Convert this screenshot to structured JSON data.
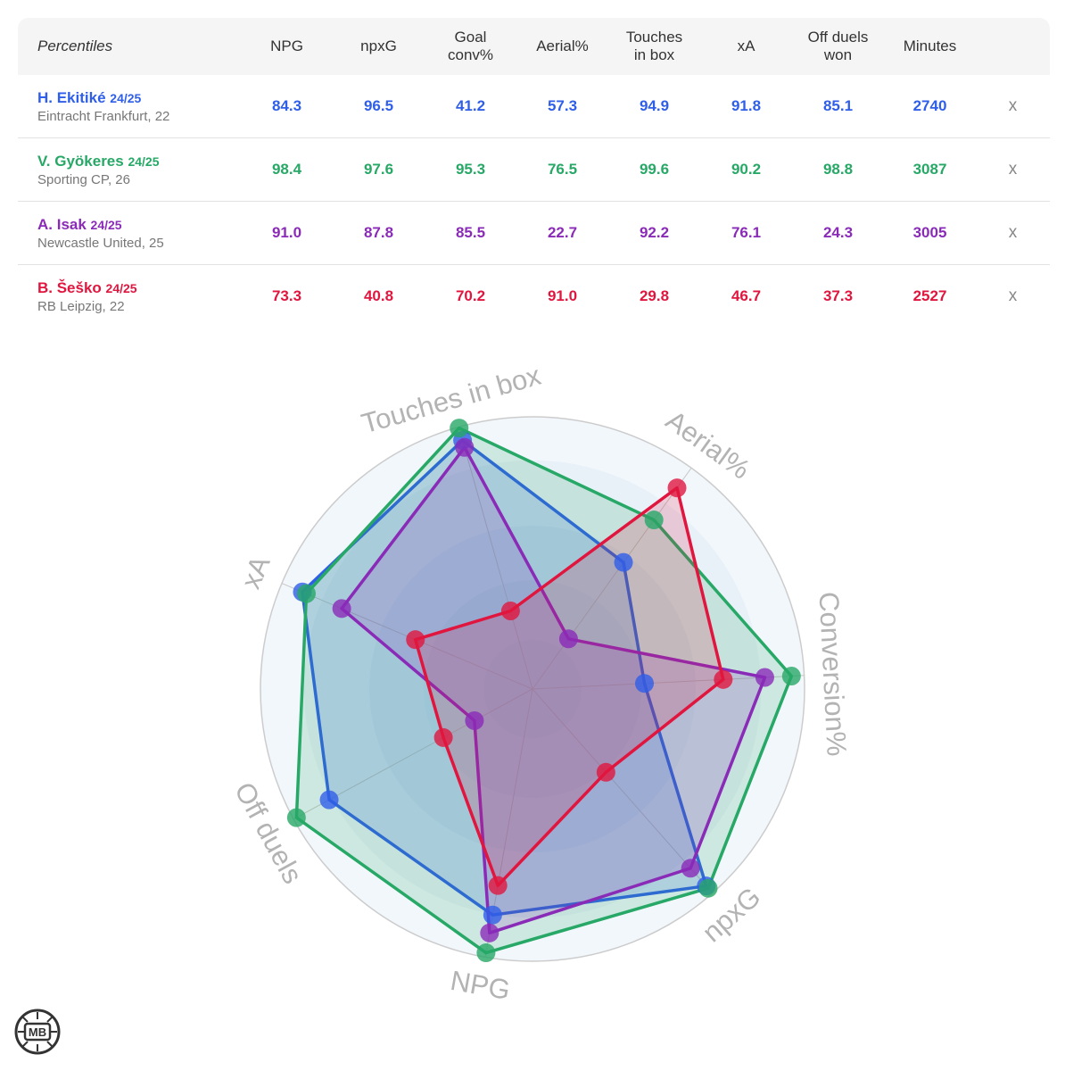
{
  "table": {
    "header_label": "Percentiles",
    "columns": [
      [
        "NPG"
      ],
      [
        "npxG"
      ],
      [
        "Goal",
        "conv%"
      ],
      [
        "Aerial%"
      ],
      [
        "Touches",
        "in box"
      ],
      [
        "xA"
      ],
      [
        "Off duels",
        "won"
      ],
      [
        "Minutes"
      ]
    ],
    "remove_label": "x",
    "players": [
      {
        "name": "H. Ekitiké",
        "season": "24/25",
        "club": "Eintracht Frankfurt, 22",
        "color": "#2f5ee8",
        "values": [
          "84.3",
          "96.5",
          "41.2",
          "57.3",
          "94.9",
          "91.8",
          "85.1",
          "2740"
        ]
      },
      {
        "name": "V. Gyökeres",
        "season": "24/25",
        "club": "Sporting CP, 26",
        "color": "#27a866",
        "values": [
          "98.4",
          "97.6",
          "95.3",
          "76.5",
          "99.6",
          "90.2",
          "98.8",
          "3087"
        ]
      },
      {
        "name": "A. Isak",
        "season": "24/25",
        "club": "Newcastle United, 25",
        "color": "#8a2bb8",
        "values": [
          "91.0",
          "87.8",
          "85.5",
          "22.7",
          "92.2",
          "76.1",
          "24.3",
          "3005"
        ]
      },
      {
        "name": "B. Šeško",
        "season": "24/25",
        "club": "RB Leipzig, 22",
        "color": "#e0163f",
        "values": [
          "73.3",
          "40.8",
          "70.2",
          "91.0",
          "29.8",
          "46.7",
          "37.3",
          "2527"
        ]
      }
    ]
  },
  "chart_data": {
    "type": "radar",
    "axes": [
      "NPG",
      "npxG",
      "Conversion%",
      "Aerial%",
      "Touches in box",
      "xA",
      "Off duels"
    ],
    "range": [
      0,
      100
    ],
    "series": [
      {
        "name": "H. Ekitiké",
        "color": "#2f5ee8",
        "values": [
          84.3,
          96.5,
          41.2,
          57.3,
          94.9,
          91.8,
          85.1
        ]
      },
      {
        "name": "V. Gyökeres",
        "color": "#27a866",
        "values": [
          98.4,
          97.6,
          95.3,
          76.5,
          99.6,
          90.2,
          98.8
        ]
      },
      {
        "name": "A. Isak",
        "color": "#8a2bb8",
        "values": [
          91.0,
          87.8,
          85.5,
          22.7,
          92.2,
          76.1,
          24.3
        ]
      },
      {
        "name": "B. Šeško",
        "color": "#e0163f",
        "values": [
          73.3,
          40.8,
          70.2,
          91.0,
          29.8,
          46.7,
          37.3
        ]
      }
    ]
  },
  "logo": {
    "text": "MB"
  }
}
